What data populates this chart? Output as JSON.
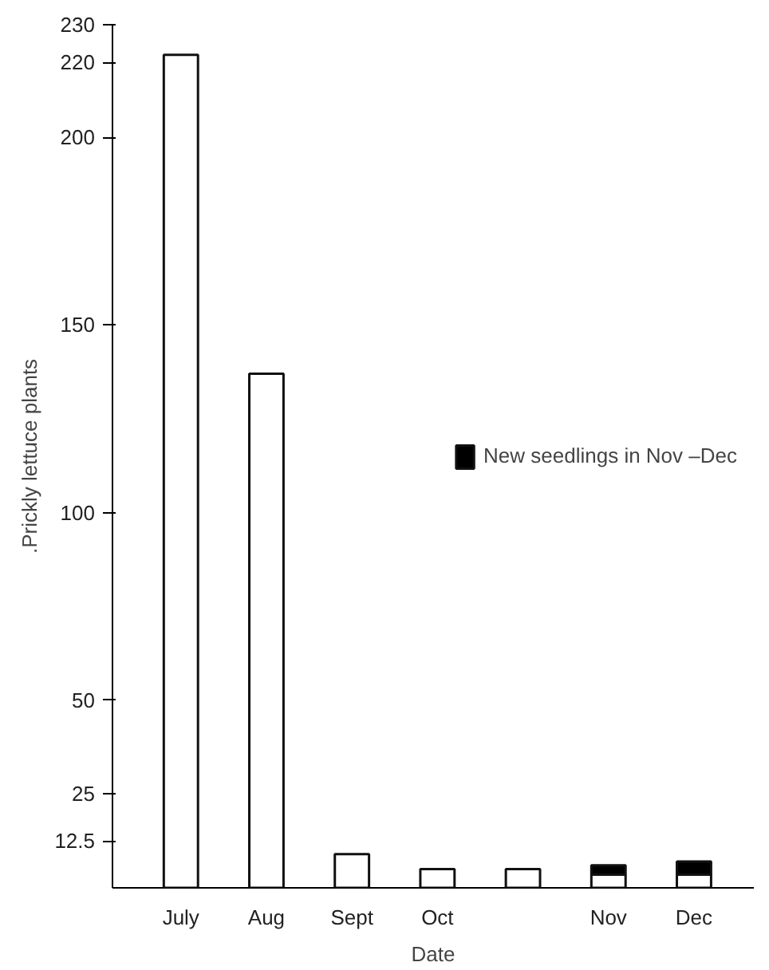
{
  "chart_data": {
    "type": "bar",
    "xlabel": "Date",
    "ylabel": ".Prickly lettuce plants",
    "categories": [
      "July",
      "Aug",
      "Sept",
      "Oct",
      null,
      "Nov",
      "Dec"
    ],
    "stacked": true,
    "series": [
      {
        "color": "#ffffff",
        "values": [
          222,
          137,
          9,
          5,
          5,
          3.5,
          3.5
        ]
      },
      {
        "name": "New seedlings in Nov –Dec",
        "color": "#000000",
        "values": [
          null,
          null,
          null,
          null,
          null,
          2.5,
          3.5
        ]
      }
    ],
    "ylim": [
      0,
      230
    ],
    "yticks": [
      12.5,
      25,
      50,
      100,
      150,
      200,
      220,
      230
    ],
    "grid": false,
    "legend": "right"
  }
}
